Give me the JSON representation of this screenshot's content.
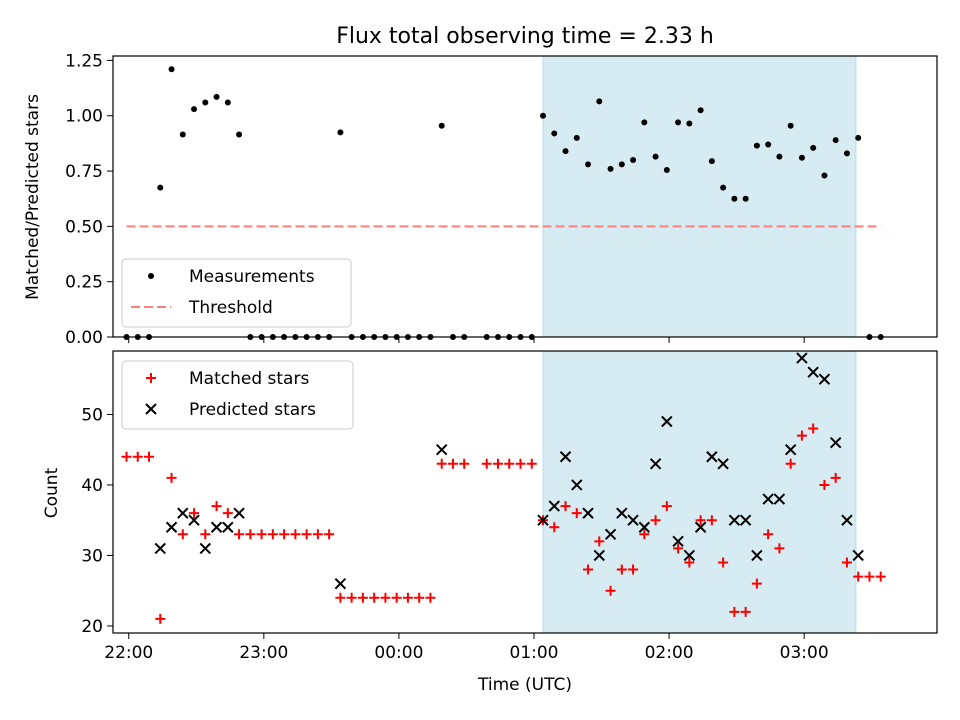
{
  "chart_data": [
    {
      "type": "scatter",
      "title": "Flux total observing time = 2.33 h",
      "xlabel": "",
      "ylabel": "Matched/Predicted stars",
      "ylim": [
        0,
        1.27
      ],
      "yticks": [
        0,
        0.25,
        0.5,
        0.75,
        1.0,
        1.25
      ],
      "ytick_labels": [
        "0.00",
        "0.25",
        "0.50",
        "0.75",
        "1.00",
        "1.25"
      ],
      "xlim": [
        "21:53",
        "03:59"
      ],
      "xticks": [
        "22:00",
        "23:00",
        "00:00",
        "01:00",
        "02:00",
        "03:00"
      ],
      "legend": "lower-left",
      "colors": {
        "measurements": "#000000",
        "threshold": "#ff7f7f",
        "span": "#add8e6"
      },
      "highlight_span": [
        "01:04",
        "03:23"
      ],
      "threshold": {
        "name": "Threshold",
        "y": 0.5,
        "x_start": "21:59",
        "x_end": "03:34"
      },
      "series": [
        {
          "name": "Measurements",
          "points": [
            [
              "21:59",
              0.0
            ],
            [
              "22:04",
              0.0
            ],
            [
              "22:09",
              0.0
            ],
            [
              "22:14",
              0.675
            ],
            [
              "22:19",
              1.21
            ],
            [
              "22:24",
              0.915
            ],
            [
              "22:29",
              1.03
            ],
            [
              "22:34",
              1.06
            ],
            [
              "22:39",
              1.085
            ],
            [
              "22:44",
              1.06
            ],
            [
              "22:49",
              0.915
            ],
            [
              "22:54",
              0.0
            ],
            [
              "22:59",
              0.0
            ],
            [
              "23:04",
              0.0
            ],
            [
              "23:09",
              0.0
            ],
            [
              "23:14",
              0.0
            ],
            [
              "23:19",
              0.0
            ],
            [
              "23:24",
              0.0
            ],
            [
              "23:29",
              0.0
            ],
            [
              "23:34",
              0.925
            ],
            [
              "23:39",
              0.0
            ],
            [
              "23:44",
              0.0
            ],
            [
              "23:49",
              0.0
            ],
            [
              "23:54",
              0.0
            ],
            [
              "23:59",
              0.0
            ],
            [
              "00:04",
              0.0
            ],
            [
              "00:09",
              0.0
            ],
            [
              "00:14",
              0.0
            ],
            [
              "00:19",
              0.955
            ],
            [
              "00:24",
              0.0
            ],
            [
              "00:29",
              0.0
            ],
            [
              "00:39",
              0.0
            ],
            [
              "00:44",
              0.0
            ],
            [
              "00:49",
              0.0
            ],
            [
              "00:54",
              0.0
            ],
            [
              "00:59",
              0.0
            ],
            [
              "01:04",
              1.0
            ],
            [
              "01:09",
              0.92
            ],
            [
              "01:14",
              0.84
            ],
            [
              "01:19",
              0.9
            ],
            [
              "01:24",
              0.78
            ],
            [
              "01:29",
              1.065
            ],
            [
              "01:34",
              0.76
            ],
            [
              "01:39",
              0.78
            ],
            [
              "01:44",
              0.8
            ],
            [
              "01:49",
              0.97
            ],
            [
              "01:54",
              0.815
            ],
            [
              "01:59",
              0.755
            ],
            [
              "02:04",
              0.97
            ],
            [
              "02:09",
              0.965
            ],
            [
              "02:14",
              1.025
            ],
            [
              "02:19",
              0.795
            ],
            [
              "02:24",
              0.675
            ],
            [
              "02:29",
              0.625
            ],
            [
              "02:34",
              0.625
            ],
            [
              "02:39",
              0.865
            ],
            [
              "02:44",
              0.87
            ],
            [
              "02:49",
              0.815
            ],
            [
              "02:54",
              0.955
            ],
            [
              "02:59",
              0.81
            ],
            [
              "03:04",
              0.855
            ],
            [
              "03:09",
              0.73
            ],
            [
              "03:14",
              0.89
            ],
            [
              "03:19",
              0.83
            ],
            [
              "03:24",
              0.9
            ],
            [
              "03:29",
              0.0
            ],
            [
              "03:34",
              0.0
            ]
          ]
        }
      ]
    },
    {
      "type": "scatter",
      "title": "",
      "xlabel": "Time (UTC)",
      "ylabel": "Count",
      "ylim": [
        19,
        59
      ],
      "yticks": [
        20,
        30,
        40,
        50
      ],
      "ytick_labels": [
        "20",
        "30",
        "40",
        "50"
      ],
      "xlim": [
        "21:53",
        "03:59"
      ],
      "xticks": [
        "22:00",
        "23:00",
        "00:00",
        "01:00",
        "02:00",
        "03:00"
      ],
      "xtick_labels": [
        "22:00",
        "23:00",
        "00:00",
        "01:00",
        "02:00",
        "03:00"
      ],
      "legend": "top-left",
      "colors": {
        "matched": "#ff0000",
        "predicted": "#000000",
        "span": "#add8e6"
      },
      "highlight_span": [
        "01:04",
        "03:23"
      ],
      "series": [
        {
          "name": "Matched stars",
          "marker": "+",
          "points": [
            [
              "21:59",
              44
            ],
            [
              "22:04",
              44
            ],
            [
              "22:09",
              44
            ],
            [
              "22:14",
              21
            ],
            [
              "22:19",
              41
            ],
            [
              "22:24",
              33
            ],
            [
              "22:29",
              36
            ],
            [
              "22:34",
              33
            ],
            [
              "22:39",
              37
            ],
            [
              "22:44",
              36
            ],
            [
              "22:49",
              33
            ],
            [
              "22:54",
              33
            ],
            [
              "22:59",
              33
            ],
            [
              "23:04",
              33
            ],
            [
              "23:09",
              33
            ],
            [
              "23:14",
              33
            ],
            [
              "23:19",
              33
            ],
            [
              "23:24",
              33
            ],
            [
              "23:29",
              33
            ],
            [
              "23:34",
              24
            ],
            [
              "23:39",
              24
            ],
            [
              "23:44",
              24
            ],
            [
              "23:49",
              24
            ],
            [
              "23:54",
              24
            ],
            [
              "23:59",
              24
            ],
            [
              "00:04",
              24
            ],
            [
              "00:09",
              24
            ],
            [
              "00:14",
              24
            ],
            [
              "00:19",
              43
            ],
            [
              "00:24",
              43
            ],
            [
              "00:29",
              43
            ],
            [
              "00:39",
              43
            ],
            [
              "00:44",
              43
            ],
            [
              "00:49",
              43
            ],
            [
              "00:54",
              43
            ],
            [
              "00:59",
              43
            ],
            [
              "01:04",
              35
            ],
            [
              "01:09",
              34
            ],
            [
              "01:14",
              37
            ],
            [
              "01:19",
              36
            ],
            [
              "01:24",
              28
            ],
            [
              "01:29",
              32
            ],
            [
              "01:34",
              25
            ],
            [
              "01:39",
              28
            ],
            [
              "01:44",
              28
            ],
            [
              "01:49",
              33
            ],
            [
              "01:54",
              35
            ],
            [
              "01:59",
              37
            ],
            [
              "02:04",
              31
            ],
            [
              "02:09",
              29
            ],
            [
              "02:14",
              35
            ],
            [
              "02:19",
              35
            ],
            [
              "02:24",
              29
            ],
            [
              "02:29",
              22
            ],
            [
              "02:34",
              22
            ],
            [
              "02:39",
              26
            ],
            [
              "02:44",
              33
            ],
            [
              "02:49",
              31
            ],
            [
              "02:54",
              43
            ],
            [
              "02:59",
              47
            ],
            [
              "03:04",
              48
            ],
            [
              "03:09",
              40
            ],
            [
              "03:14",
              41
            ],
            [
              "03:19",
              29
            ],
            [
              "03:24",
              27
            ],
            [
              "03:29",
              27
            ],
            [
              "03:34",
              27
            ]
          ]
        },
        {
          "name": "Predicted stars",
          "marker": "x",
          "points": [
            [
              "22:14",
              31
            ],
            [
              "22:19",
              34
            ],
            [
              "22:24",
              36
            ],
            [
              "22:29",
              35
            ],
            [
              "22:34",
              31
            ],
            [
              "22:39",
              34
            ],
            [
              "22:44",
              34
            ],
            [
              "22:49",
              36
            ],
            [
              "23:34",
              26
            ],
            [
              "00:19",
              45
            ],
            [
              "01:04",
              35
            ],
            [
              "01:09",
              37
            ],
            [
              "01:14",
              44
            ],
            [
              "01:19",
              40
            ],
            [
              "01:24",
              36
            ],
            [
              "01:29",
              30
            ],
            [
              "01:34",
              33
            ],
            [
              "01:39",
              36
            ],
            [
              "01:44",
              35
            ],
            [
              "01:49",
              34
            ],
            [
              "01:54",
              43
            ],
            [
              "01:59",
              49
            ],
            [
              "02:04",
              32
            ],
            [
              "02:09",
              30
            ],
            [
              "02:14",
              34
            ],
            [
              "02:19",
              44
            ],
            [
              "02:24",
              43
            ],
            [
              "02:29",
              35
            ],
            [
              "02:34",
              35
            ],
            [
              "02:39",
              30
            ],
            [
              "02:44",
              38
            ],
            [
              "02:49",
              38
            ],
            [
              "02:54",
              45
            ],
            [
              "02:59",
              58
            ],
            [
              "03:04",
              56
            ],
            [
              "03:09",
              55
            ],
            [
              "03:14",
              46
            ],
            [
              "03:19",
              35
            ],
            [
              "03:24",
              30
            ]
          ]
        }
      ]
    }
  ]
}
